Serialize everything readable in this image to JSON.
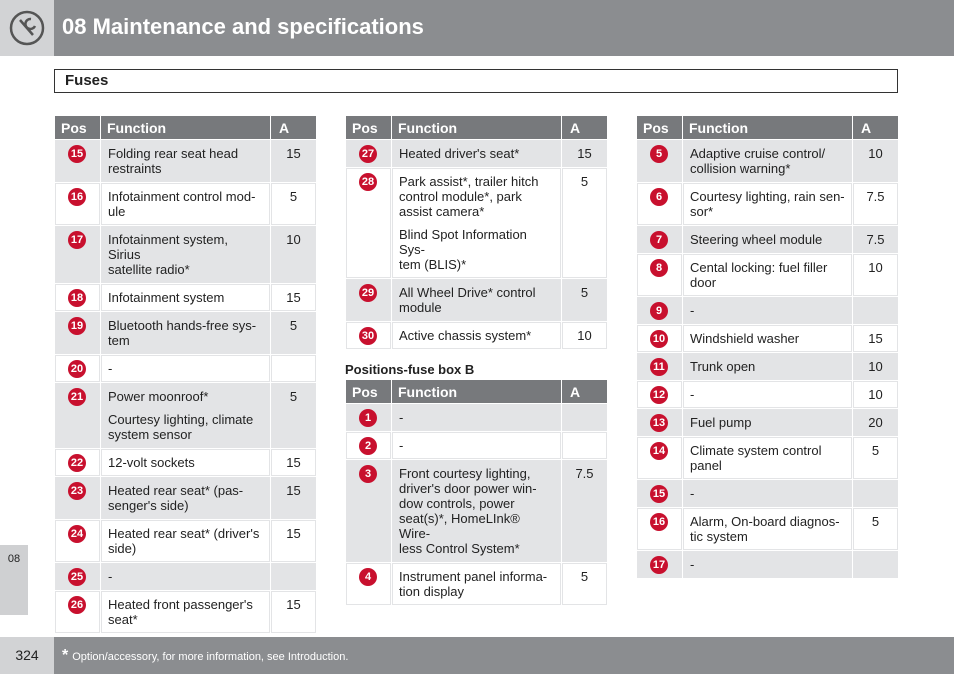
{
  "header": {
    "title": "08 Maintenance and specifications"
  },
  "section_title": "Fuses",
  "side_tab": "08",
  "columns": [
    {
      "tables": [
        {
          "headers": [
            "Pos",
            "Function",
            "A"
          ],
          "rows": [
            {
              "pos": "15",
              "function": [
                "Folding rear seat head\nrestraints"
              ],
              "a": "15"
            },
            {
              "pos": "16",
              "function": [
                "Infotainment control mod-\nule"
              ],
              "a": "5"
            },
            {
              "pos": "17",
              "function": [
                "Infotainment system, Sirius\nsatellite radio*"
              ],
              "a": "10"
            },
            {
              "pos": "18",
              "function": [
                "Infotainment system"
              ],
              "a": "15"
            },
            {
              "pos": "19",
              "function": [
                "Bluetooth hands-free sys-\ntem"
              ],
              "a": "5"
            },
            {
              "pos": "20",
              "function": [
                "-"
              ],
              "a": null
            },
            {
              "pos": "21",
              "function": [
                "Power moonroof*",
                "Courtesy lighting, climate\nsystem sensor"
              ],
              "a": "5"
            },
            {
              "pos": "22",
              "function": [
                "12-volt sockets"
              ],
              "a": "15"
            },
            {
              "pos": "23",
              "function": [
                "Heated rear seat* (pas-\nsenger's side)"
              ],
              "a": "15"
            },
            {
              "pos": "24",
              "function": [
                "Heated rear seat* (driver's\nside)"
              ],
              "a": "15"
            },
            {
              "pos": "25",
              "function": [
                "-"
              ],
              "a": null
            },
            {
              "pos": "26",
              "function": [
                "Heated front passenger's\nseat*"
              ],
              "a": "15"
            }
          ]
        }
      ]
    },
    {
      "tables": [
        {
          "headers": [
            "Pos",
            "Function",
            "A"
          ],
          "rows": [
            {
              "pos": "27",
              "function": [
                "Heated driver's seat*"
              ],
              "a": "15"
            },
            {
              "pos": "28",
              "function": [
                "Park assist*, trailer hitch\ncontrol module*, park\nassist camera*",
                "Blind Spot Information Sys-\ntem (BLIS)*"
              ],
              "a": "5"
            },
            {
              "pos": "29",
              "function": [
                "All Wheel Drive* control\nmodule"
              ],
              "a": "5"
            },
            {
              "pos": "30",
              "function": [
                "Active chassis system*"
              ],
              "a": "10"
            }
          ]
        },
        {
          "caption": "Positions-fuse box B",
          "headers": [
            "Pos",
            "Function",
            "A"
          ],
          "rows": [
            {
              "pos": "1",
              "function": [
                "-"
              ],
              "a": null
            },
            {
              "pos": "2",
              "function": [
                "-"
              ],
              "a": null
            },
            {
              "pos": "3",
              "function": [
                "Front courtesy lighting,\ndriver's door power win-\ndow controls, power\nseat(s)*, HomeLInk® Wire-\nless Control System*"
              ],
              "a": "7.5"
            },
            {
              "pos": "4",
              "function": [
                "Instrument panel informa-\ntion display"
              ],
              "a": "5"
            }
          ]
        }
      ]
    },
    {
      "tables": [
        {
          "headers": [
            "Pos",
            "Function",
            "A"
          ],
          "rows": [
            {
              "pos": "5",
              "function": [
                "Adaptive cruise control/\ncollision warning*"
              ],
              "a": "10"
            },
            {
              "pos": "6",
              "function": [
                "Courtesy lighting, rain sen-\nsor*"
              ],
              "a": "7.5"
            },
            {
              "pos": "7",
              "function": [
                "Steering wheel module"
              ],
              "a": "7.5"
            },
            {
              "pos": "8",
              "function": [
                "Cental locking: fuel filler\ndoor"
              ],
              "a": "10"
            },
            {
              "pos": "9",
              "function": [
                "-"
              ],
              "a": null
            },
            {
              "pos": "10",
              "function": [
                "Windshield washer"
              ],
              "a": "15"
            },
            {
              "pos": "11",
              "function": [
                "Trunk open"
              ],
              "a": "10"
            },
            {
              "pos": "12",
              "function": [
                "-"
              ],
              "a": "10"
            },
            {
              "pos": "13",
              "function": [
                "Fuel pump"
              ],
              "a": "20"
            },
            {
              "pos": "14",
              "function": [
                "Climate system control\npanel"
              ],
              "a": "5"
            },
            {
              "pos": "15",
              "function": [
                "-"
              ],
              "a": null
            },
            {
              "pos": "16",
              "function": [
                "Alarm, On-board diagnos-\ntic system"
              ],
              "a": "5"
            },
            {
              "pos": "17",
              "function": [
                "-"
              ],
              "a": null
            }
          ]
        }
      ]
    }
  ],
  "footer": {
    "page_number": "324",
    "mark": "*",
    "note": "Option/accessory, for more information, see Introduction."
  }
}
